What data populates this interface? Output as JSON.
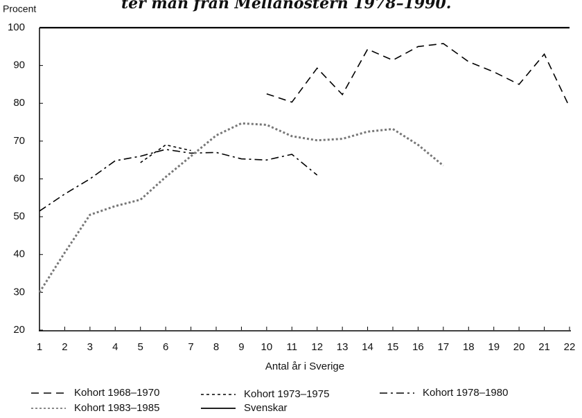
{
  "chart_data": {
    "type": "line",
    "title": "ter man från Mellanöstern 1978–1990.",
    "ylabel": "Procent",
    "xlabel": "Antal år i Sverige",
    "x": [
      1,
      2,
      3,
      4,
      5,
      6,
      7,
      8,
      9,
      10,
      11,
      12,
      13,
      14,
      15,
      16,
      17,
      18,
      19,
      20,
      21,
      22
    ],
    "xlim": [
      1,
      22
    ],
    "xticks": [
      1,
      2,
      3,
      4,
      5,
      6,
      7,
      8,
      9,
      10,
      11,
      12,
      13,
      14,
      15,
      16,
      17,
      18,
      19,
      20,
      21,
      22
    ],
    "ylim": [
      20,
      100
    ],
    "yticks": [
      20,
      30,
      40,
      50,
      60,
      70,
      80,
      90,
      100
    ],
    "series": [
      {
        "name": "Kohort 1968–1970",
        "color": "#000000",
        "style": "dashed",
        "values": [
          null,
          null,
          null,
          null,
          null,
          null,
          null,
          null,
          null,
          82.5,
          80.3,
          89.3,
          82.3,
          94.3,
          91.4,
          95,
          95.8,
          91,
          88.3,
          85,
          93,
          79
        ]
      },
      {
        "name": "Kohort 1973–1975",
        "color": "#000000",
        "style": "dotted",
        "values": [
          null,
          null,
          null,
          null,
          64.3,
          69,
          67.5,
          null,
          null,
          null,
          null,
          null,
          null,
          null,
          null,
          null,
          null,
          null,
          null,
          null,
          null,
          null
        ]
      },
      {
        "name": "Kohort 1978–1980",
        "color": "#000000",
        "style": "dashdot",
        "values": [
          51.5,
          56,
          60,
          64.8,
          66,
          67.8,
          66.8,
          67,
          65.3,
          65,
          66.5,
          61,
          null,
          null,
          null,
          null,
          null,
          null,
          null,
          null,
          null,
          null
        ]
      },
      {
        "name": "Kohort 1983–1985",
        "color": "#777777",
        "style": "dashdotdot",
        "values": [
          30,
          40.5,
          50.5,
          52.8,
          54.5,
          60.5,
          66,
          71.5,
          74.7,
          74.3,
          71.3,
          70.2,
          70.6,
          72.5,
          73.2,
          69,
          63.5,
          null,
          null,
          null,
          null,
          null
        ]
      },
      {
        "name": "Svenskar",
        "color": "#000000",
        "style": "solid",
        "values": [
          100,
          100,
          100,
          100,
          100,
          100,
          100,
          100,
          100,
          100,
          100,
          100,
          100,
          100,
          100,
          100,
          100,
          100,
          100,
          100,
          100,
          100
        ]
      }
    ]
  }
}
